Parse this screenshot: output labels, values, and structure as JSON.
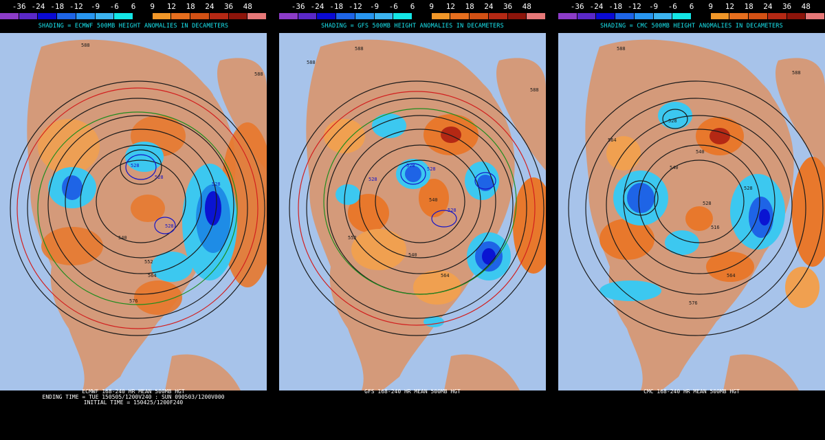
{
  "legend": {
    "values": [
      "-36",
      "-24",
      "-18",
      "-12",
      "-9",
      "-6",
      "6",
      "9",
      "12",
      "18",
      "24",
      "36",
      "48"
    ],
    "colors": [
      "#8c3cc8",
      "#5a28c8",
      "#0a0ad2",
      "#1e64e6",
      "#2896f0",
      "#3cb4f0",
      "#14e6e6",
      "#000000",
      "#f09628",
      "#e66e1e",
      "#d25014",
      "#b42814",
      "#8c140a",
      "#e67878"
    ]
  },
  "panels": [
    {
      "shading": "SHADING = ECMWF 500MB HEIGHT ANOMALIES IN DECAMETERS",
      "caption": [
        "ECMWF 168-240 HR MEAN 500MB HGT",
        "ENDING TIME = TUE 150505/1200V240 : SUN 090503/1200V000",
        "INITIAL TIME = 150425/1200F240"
      ],
      "contour_labels": [
        "588",
        "588",
        "528",
        "528",
        "528",
        "528",
        "540",
        "552",
        "564",
        "576"
      ]
    },
    {
      "shading": "SHADING = GFS 500MB HEIGHT ANOMALIES IN DECAMETERS",
      "caption": [
        "GFS 168-240 HR MEAN 500MB HGT"
      ],
      "contour_labels": [
        "588",
        "588",
        "588",
        "528",
        "528",
        "528",
        "540",
        "528",
        "540",
        "552",
        "564"
      ]
    },
    {
      "shading": "SHADING = CMC 500MB HEIGHT ANOMALIES IN DECAMETERS",
      "caption": [
        "CMC 168-240 HR MEAN 500MB HGT"
      ],
      "contour_labels": [
        "588",
        "588",
        "564",
        "540",
        "540",
        "528",
        "528",
        "516",
        "528",
        "564",
        "576"
      ]
    }
  ]
}
